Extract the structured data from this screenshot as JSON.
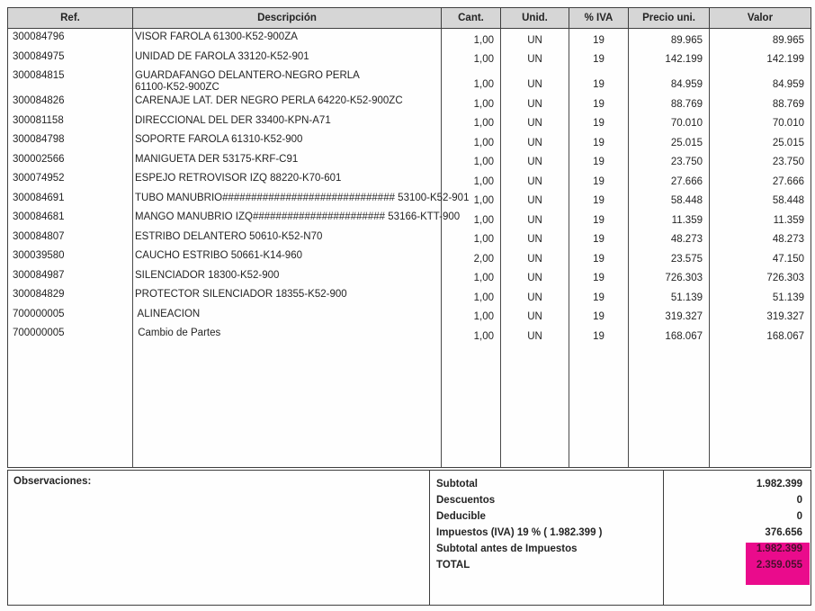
{
  "colors": {
    "highlight": "#ea0b8c",
    "header_bg": "#d6d6d6",
    "border": "#3e3e3e"
  },
  "table": {
    "columns": [
      {
        "label": "Ref."
      },
      {
        "label": "Descripción"
      },
      {
        "label": "Cant."
      },
      {
        "label": "Unid."
      },
      {
        "label": "% IVA"
      },
      {
        "label": "Precio uni."
      },
      {
        "label": "Valor"
      }
    ],
    "rows": [
      {
        "ref": "300084796",
        "desc": "VISOR FAROLA 61300-K52-900ZA",
        "cant": "1,00",
        "unid": "UN",
        "iva": "19",
        "precio": "89.965",
        "valor": "89.965"
      },
      {
        "ref": "300084975",
        "desc": "UNIDAD DE FAROLA 33120-K52-901",
        "cant": "1,00",
        "unid": "UN",
        "iva": "19",
        "precio": "142.199",
        "valor": "142.199"
      },
      {
        "ref": "300084815",
        "desc": "GUARDAFANGO DELANTERO-NEGRO PERLA\n61100-K52-900ZC",
        "cant": "1,00",
        "unid": "UN",
        "iva": "19",
        "precio": "84.959",
        "valor": "84.959"
      },
      {
        "ref": "300084826",
        "desc": "CARENAJE LAT. DER NEGRO PERLA 64220-K52-900ZC",
        "cant": "1,00",
        "unid": "UN",
        "iva": "19",
        "precio": "88.769",
        "valor": "88.769"
      },
      {
        "ref": "300081158",
        "desc": "DIRECCIONAL DEL DER 33400-KPN-A71",
        "cant": "1,00",
        "unid": "UN",
        "iva": "19",
        "precio": "70.010",
        "valor": "70.010"
      },
      {
        "ref": "300084798",
        "desc": "SOPORTE FAROLA 61310-K52-900",
        "cant": "1,00",
        "unid": "UN",
        "iva": "19",
        "precio": "25.015",
        "valor": "25.015"
      },
      {
        "ref": "300002566",
        "desc": "MANIGUETA DER 53175-KRF-C91",
        "cant": "1,00",
        "unid": "UN",
        "iva": "19",
        "precio": "23.750",
        "valor": "23.750"
      },
      {
        "ref": "300074952",
        "desc": "ESPEJO RETROVISOR IZQ 88220-K70-601",
        "cant": "1,00",
        "unid": "UN",
        "iva": "19",
        "precio": "27.666",
        "valor": "27.666"
      },
      {
        "ref": "300084691",
        "desc": "TUBO MANUBRIO############################## 53100-K52-901",
        "cant": "1,00",
        "unid": "UN",
        "iva": "19",
        "precio": "58.448",
        "valor": "58.448"
      },
      {
        "ref": "300084681",
        "desc": "MANGO MANUBRIO IZQ####################### 53166-KTT-900",
        "cant": "1,00",
        "unid": "UN",
        "iva": "19",
        "precio": "11.359",
        "valor": "11.359"
      },
      {
        "ref": "300084807",
        "desc": "ESTRIBO DELANTERO 50610-K52-N70",
        "cant": "1,00",
        "unid": "UN",
        "iva": "19",
        "precio": "48.273",
        "valor": "48.273"
      },
      {
        "ref": "300039580",
        "desc": "CAUCHO ESTRIBO 50661-K14-960",
        "cant": "2,00",
        "unid": "UN",
        "iva": "19",
        "precio": "23.575",
        "valor": "47.150"
      },
      {
        "ref": "300084987",
        "desc": "SILENCIADOR 18300-K52-900",
        "cant": "1,00",
        "unid": "UN",
        "iva": "19",
        "precio": "726.303",
        "valor": "726.303"
      },
      {
        "ref": "300084829",
        "desc": "PROTECTOR SILENCIADOR 18355-K52-900",
        "cant": "1,00",
        "unid": "UN",
        "iva": "19",
        "precio": "51.139",
        "valor": "51.139"
      },
      {
        "ref": "700000005",
        "desc": " ALINEACION",
        "cant": "1,00",
        "unid": "UN",
        "iva": "19",
        "precio": "319.327",
        "valor": "319.327"
      },
      {
        "ref": "700000005",
        "desc": " Cambio de Partes",
        "cant": "1,00",
        "unid": "UN",
        "iva": "19",
        "precio": "168.067",
        "valor": "168.067"
      }
    ]
  },
  "summary": {
    "observaciones_label": "Observaciones:",
    "lines": [
      {
        "label": "Subtotal",
        "value": "1.982.399",
        "highlight": false
      },
      {
        "label": "Descuentos",
        "value": "0",
        "highlight": false
      },
      {
        "label": "Deducible",
        "value": "0",
        "highlight": false
      },
      {
        "label": "Impuestos (IVA) 19 % ( 1.982.399 )",
        "value": "376.656",
        "highlight": false
      },
      {
        "label": "Subtotal antes de Impuestos",
        "value": "1.982.399",
        "highlight": true
      },
      {
        "label": "TOTAL",
        "value": "2.359.055",
        "highlight": true
      }
    ]
  }
}
